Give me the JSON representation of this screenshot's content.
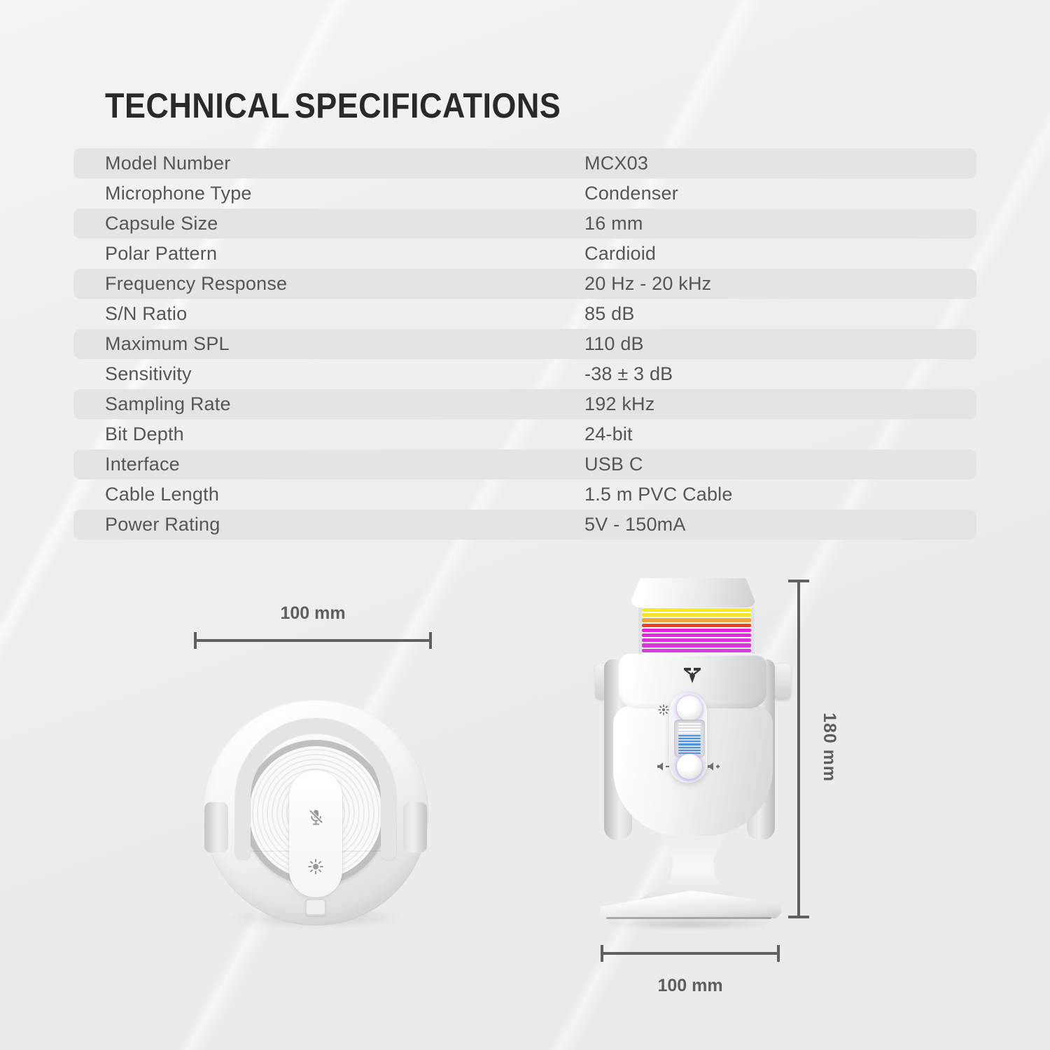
{
  "page": {
    "title": "TECHNICAL SPECIFICATIONS"
  },
  "specs": {
    "rows": [
      {
        "label": "Model Number",
        "value": "MCX03"
      },
      {
        "label": "Microphone Type",
        "value": "Condenser"
      },
      {
        "label": "Capsule Size",
        "value": "16 mm"
      },
      {
        "label": "Polar Pattern",
        "value": "Cardioid"
      },
      {
        "label": "Frequency Response",
        "value": "20 Hz - 20 kHz"
      },
      {
        "label": "S/N Ratio",
        "value": "85 dB"
      },
      {
        "label": "Maximum SPL",
        "value": "110 dB"
      },
      {
        "label": "Sensitivity",
        "value": "-38 ± 3 dB"
      },
      {
        "label": "Sampling Rate",
        "value": "192 kHz"
      },
      {
        "label": "Bit Depth",
        "value": "24-bit"
      },
      {
        "label": "Interface",
        "value": "USB C"
      },
      {
        "label": "Cable Length",
        "value": "1.5 m PVC Cable"
      },
      {
        "label": "Power Rating",
        "value": "5V - 150mA"
      }
    ]
  },
  "diagram": {
    "top_view_width_label": "100 mm",
    "side_height_label": "180 mm",
    "side_width_label": "100 mm"
  },
  "side_view": {
    "stripe_colors": [
      "#f5ee1e",
      "#f2e42c",
      "#f0a43c",
      "#e84228",
      "#e226d8",
      "#e029d9",
      "#dd2fda",
      "#da36db",
      "#d73edd",
      "#d346de"
    ],
    "led": {
      "white_count": 4,
      "white_color": "#fbfbfc",
      "blue_count": 7,
      "blue_color": "#4b95de"
    }
  },
  "icons": {
    "top_view": [
      "mic-mute-icon",
      "brightness-icon"
    ],
    "side_view": [
      "fantech-logo",
      "brightness-icon",
      "volume-minus-icon",
      "volume-plus-icon"
    ]
  },
  "colors": {
    "background": "#eceded",
    "row_band": "#e4e4e7",
    "text": "#55565a",
    "title": "#28292b",
    "dimension": "#5f6063",
    "led_blue": "#4b95de"
  }
}
